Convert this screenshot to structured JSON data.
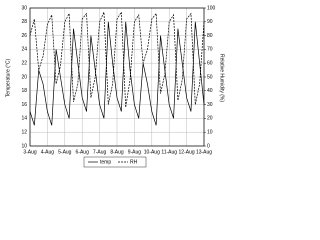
{
  "chart_data": {
    "type": "line",
    "x": [
      3,
      3.25,
      3.5,
      3.75,
      4,
      4.25,
      4.5,
      4.75,
      5,
      5.25,
      5.5,
      5.75,
      6,
      6.25,
      6.5,
      6.75,
      7,
      7.25,
      7.5,
      7.75,
      8,
      8.25,
      8.5,
      8.75,
      9,
      9.25,
      9.5,
      9.75,
      10,
      10.25,
      10.5,
      10.75,
      11,
      11.25,
      11.5,
      11.75,
      12,
      12.25,
      12.5,
      12.75,
      13
    ],
    "series": [
      {
        "name": "temp",
        "color": "#000000",
        "dash": false,
        "values": [
          15,
          13,
          21,
          19,
          15,
          13,
          24,
          20,
          16,
          14,
          27,
          22,
          17,
          15,
          26,
          21,
          16,
          14,
          28,
          22,
          17,
          15,
          28,
          21,
          16,
          14,
          22,
          19,
          15,
          13,
          26,
          21,
          16,
          14,
          27,
          22,
          17,
          15,
          28,
          22,
          16
        ]
      },
      {
        "name": "RH",
        "color": "#000000",
        "dash": true,
        "axis": "y2",
        "values": [
          80,
          92,
          55,
          65,
          88,
          95,
          45,
          58,
          90,
          96,
          32,
          45,
          92,
          96,
          35,
          50,
          90,
          97,
          30,
          45,
          92,
          97,
          28,
          48,
          90,
          95,
          60,
          70,
          92,
          96,
          38,
          52,
          90,
          95,
          33,
          48,
          92,
          96,
          30,
          45,
          90
        ]
      }
    ],
    "xlim": [
      3,
      13
    ],
    "xticks": [
      {
        "value": 3,
        "label": "3-Aug"
      },
      {
        "value": 4,
        "label": "4-Aug"
      },
      {
        "value": 5,
        "label": "5-Aug"
      },
      {
        "value": 6,
        "label": "6-Aug"
      },
      {
        "value": 7,
        "label": "7-Aug"
      },
      {
        "value": 8,
        "label": "8-Aug"
      },
      {
        "value": 9,
        "label": "9-Aug"
      },
      {
        "value": 10,
        "label": "10-Aug"
      },
      {
        "value": 11,
        "label": "11-Aug"
      },
      {
        "value": 12,
        "label": "12-Aug"
      },
      {
        "value": 13,
        "label": "13-Aug"
      }
    ],
    "ylim": [
      10,
      30
    ],
    "yticks": [
      10,
      12,
      14,
      16,
      18,
      20,
      22,
      24,
      26,
      28,
      30
    ],
    "y2lim": [
      0,
      100
    ],
    "y2ticks": [
      0,
      10,
      20,
      30,
      40,
      50,
      60,
      70,
      80,
      90,
      100
    ],
    "ylabel": "Temperature (°C)",
    "y2label": "Relative Humidity (%)",
    "grid": true,
    "legend": "bottom"
  }
}
